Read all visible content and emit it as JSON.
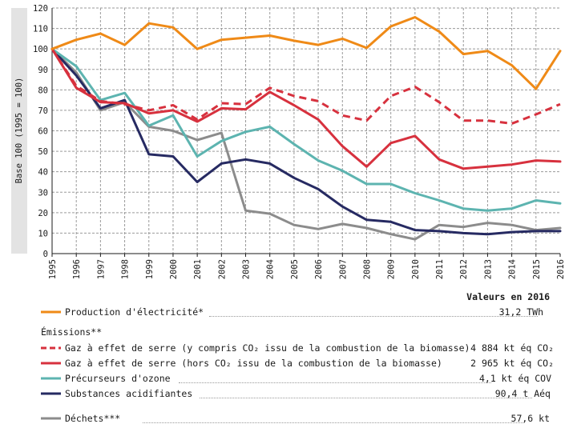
{
  "chart_data": {
    "type": "line",
    "ylabel": "Base 100 (1995 = 100)",
    "ylim": [
      0,
      120
    ],
    "yticks": [
      0,
      10,
      20,
      30,
      40,
      50,
      60,
      70,
      80,
      90,
      100,
      110,
      120
    ],
    "grid": true,
    "x": [
      "1995",
      "1996",
      "1997",
      "1998",
      "1999",
      "2000",
      "2001",
      "2002",
      "2003",
      "2004",
      "2005",
      "2006",
      "2007",
      "2008",
      "2009",
      "2010",
      "2011",
      "2012",
      "2013",
      "2014",
      "2015",
      "2016"
    ],
    "values_heading": "Valeurs en 2016",
    "emissions_heading": "Émissions**",
    "series": [
      {
        "name": "Production d'électricité*",
        "value2016": "31,2 TWh",
        "color": "#ef8a17",
        "dash": false,
        "values": [
          100,
          104.5,
          107.5,
          102,
          112.5,
          110.5,
          100,
          104.5,
          105.5,
          106.5,
          104,
          102,
          105,
          100.5,
          111,
          115.5,
          108.5,
          97.5,
          99,
          92,
          80.5,
          99
        ]
      },
      {
        "name": "Gaz à effet de serre (y compris CO₂ issu de la combustion de la biomasse)",
        "value2016": "4 884 kt éq CO₂",
        "color": "#d7313e",
        "dash": true,
        "values": [
          100,
          82,
          74.5,
          73,
          70,
          72.5,
          65.5,
          73.5,
          73,
          81,
          77,
          74.5,
          67.5,
          65,
          77,
          81.5,
          74,
          65,
          65,
          63.5,
          68,
          73
        ]
      },
      {
        "name": "Gaz à effet de serre (hors CO₂ issu de la combustion de la biomasse)",
        "value2016": "2 965 kt éq CO₂",
        "color": "#d7313e",
        "dash": false,
        "values": [
          100,
          81,
          74,
          73.5,
          68.5,
          70,
          64.5,
          71,
          70.5,
          79,
          72.5,
          65.5,
          52.5,
          42.5,
          54,
          57.5,
          46,
          41.5,
          42.5,
          43.5,
          45.5,
          45
        ]
      },
      {
        "name": "Précurseurs d'ozone",
        "value2016": "4,1 kt éq COV",
        "color": "#5db4b0",
        "dash": false,
        "values": [
          100,
          91.5,
          75,
          78.5,
          62.5,
          67.5,
          47.5,
          55,
          59.5,
          62,
          53.5,
          45.5,
          40.5,
          34,
          34,
          29.5,
          26,
          22,
          21,
          22,
          26,
          24.5
        ]
      },
      {
        "name": "Substances acidifiantes",
        "value2016": "90,4 t Aéq",
        "color": "#262a62",
        "dash": false,
        "values": [
          100,
          87,
          71,
          75,
          48.5,
          47.5,
          35,
          44,
          46,
          44,
          37,
          31.5,
          23,
          16.5,
          15.5,
          11.5,
          11,
          10,
          9.5,
          10.5,
          11,
          11
        ]
      },
      {
        "name": "Déchets***",
        "value2016": "57,6 kt",
        "color": "#8c8c8c",
        "dash": false,
        "values": [
          100,
          88.5,
          70,
          74,
          62,
          60,
          55.5,
          59,
          21,
          19.5,
          14,
          12,
          14.5,
          12.5,
          9.5,
          7,
          14,
          13,
          15,
          14,
          11.5,
          12.5
        ]
      }
    ]
  }
}
